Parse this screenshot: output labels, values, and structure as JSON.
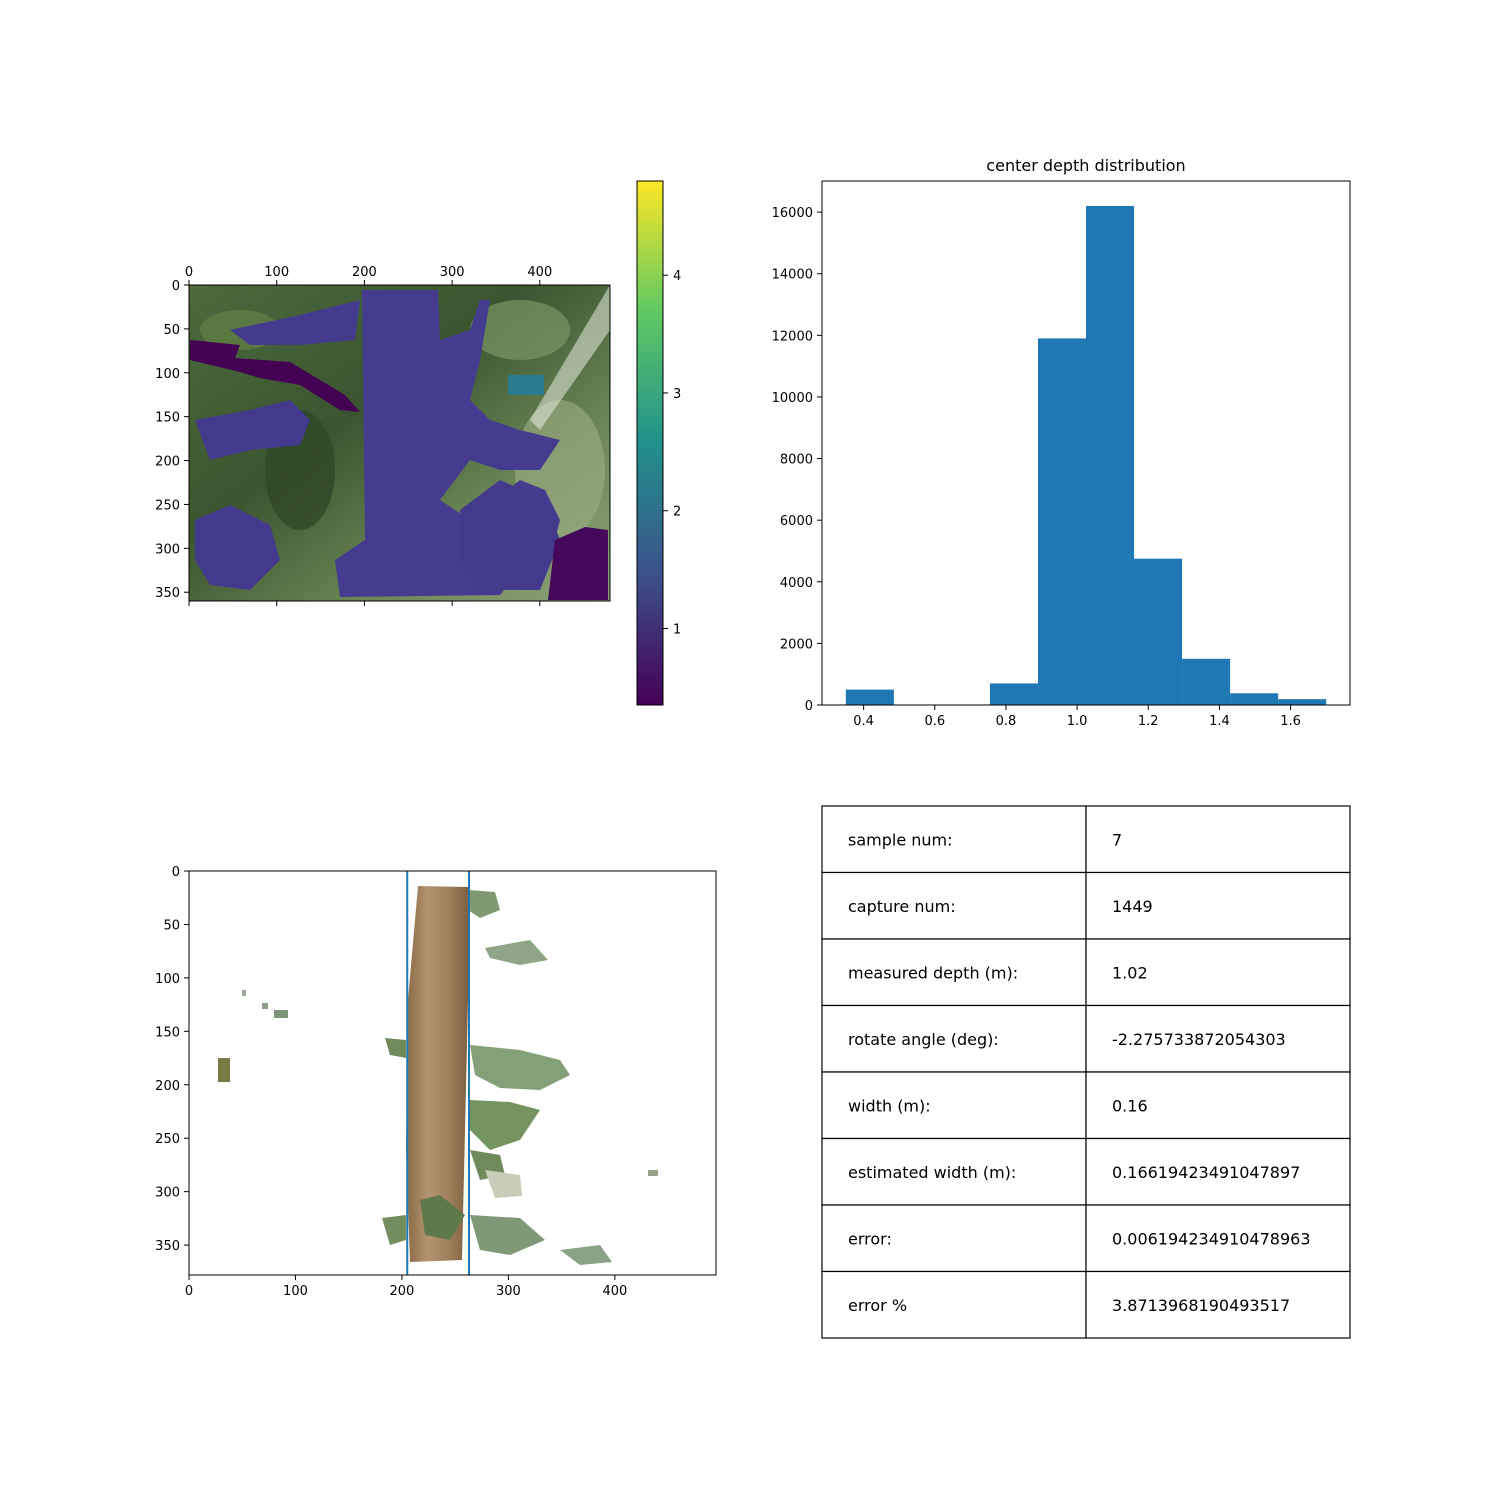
{
  "chart_data": [
    {
      "type": "heatmap",
      "description_role": "depth overlay image",
      "xticks": [
        0,
        100,
        200,
        300,
        400
      ],
      "yticks": [
        0,
        50,
        100,
        150,
        200,
        250,
        300,
        350
      ],
      "xlim": [
        0,
        480
      ],
      "ylim": [
        360,
        0
      ],
      "colorbar": {
        "ticks": [
          1,
          2,
          3,
          4
        ],
        "range": [
          0.35,
          4.8
        ],
        "colormap": "viridis",
        "colors": [
          "#440154",
          "#3b528b",
          "#21918c",
          "#5ec962",
          "#fde725"
        ]
      }
    },
    {
      "type": "bar",
      "title": "center depth distribution",
      "bin_edges": [
        0.35,
        0.485,
        0.62,
        0.755,
        0.89,
        1.025,
        1.16,
        1.295,
        1.43,
        1.565,
        1.7
      ],
      "values": [
        500,
        0,
        0,
        700,
        11900,
        16200,
        4750,
        1500,
        380,
        190
      ],
      "xticks": [
        0.4,
        0.6,
        0.8,
        1.0,
        1.2,
        1.4,
        1.6
      ],
      "yticks": [
        0,
        2000,
        4000,
        6000,
        8000,
        10000,
        12000,
        14000,
        16000
      ],
      "xlim": [
        0.283,
        1.767
      ],
      "ylim": [
        0,
        17010
      ],
      "color": "#1f77b4"
    },
    {
      "type": "heatmap",
      "description_role": "cropped trunk image with boundary lines",
      "xticks": [
        0,
        100,
        200,
        300,
        400
      ],
      "yticks": [
        0,
        50,
        100,
        150,
        200,
        250,
        300,
        350
      ],
      "xlim": [
        0,
        495
      ],
      "ylim": [
        378,
        0
      ],
      "vlines": [
        205,
        263
      ],
      "line_color": "#1f77b4"
    },
    {
      "type": "table",
      "rows": [
        [
          "sample num:",
          "7"
        ],
        [
          "capture num:",
          "1449"
        ],
        [
          "measured depth (m):",
          "1.02"
        ],
        [
          "rotate angle (deg):",
          "-2.275733872054303"
        ],
        [
          "width (m):",
          "0.16"
        ],
        [
          "estimated width (m):",
          "0.16619423491047897"
        ],
        [
          "error:",
          "0.006194234910478963"
        ],
        [
          "error %",
          "3.8713968190493517"
        ]
      ]
    }
  ]
}
